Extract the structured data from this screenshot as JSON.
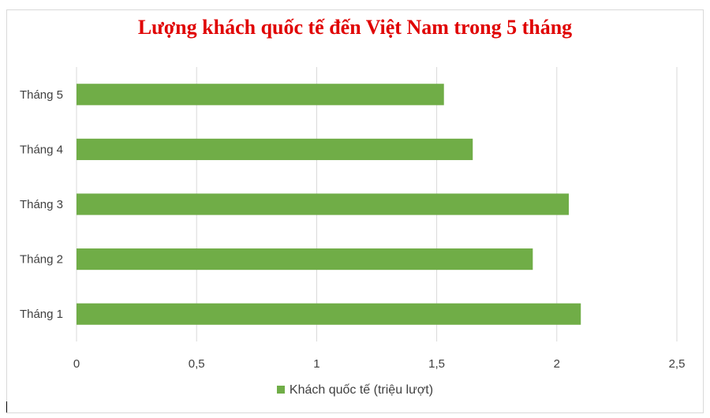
{
  "chart_data": {
    "type": "bar",
    "orientation": "horizontal",
    "title": "Lượng khách quốc tế đến Việt Nam trong 5 tháng",
    "categories": [
      "Tháng 1",
      "Tháng 2",
      "Tháng 3",
      "Tháng 4",
      "Tháng 5"
    ],
    "series": [
      {
        "name": "Khách quốc tế (triệu lượt)",
        "values": [
          2.1,
          1.9,
          2.05,
          1.65,
          1.53
        ],
        "color": "#70ad47"
      }
    ],
    "xlim": [
      0,
      2.5
    ],
    "xticks": [
      "0",
      "0,5",
      "1",
      "1,5",
      "2",
      "2,5"
    ],
    "grid": "vertical",
    "legend_position": "bottom",
    "title_color": "#e00000"
  }
}
